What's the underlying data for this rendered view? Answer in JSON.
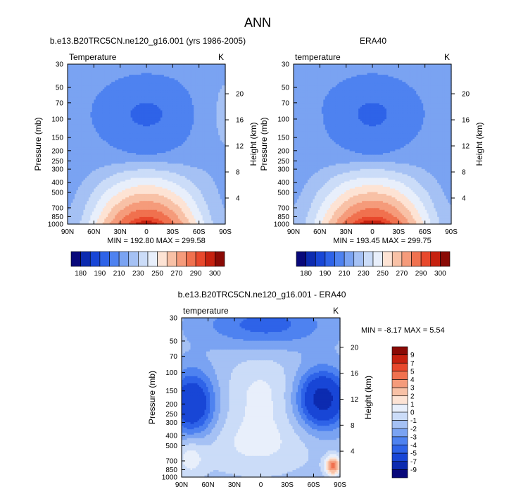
{
  "page_title": "ANN",
  "chart_data": [
    {
      "type": "heatmap",
      "title": "b.e13.B20TRC5CN.ne120_g16.001 (yrs 1986-2005)",
      "subtitle_left": "Temperature",
      "subtitle_right": "K",
      "xlabel": "",
      "ylabel": "Pressure (mb)",
      "ylabel_right": "Height (km)",
      "x_ticks": [
        "90N",
        "60N",
        "30N",
        "0",
        "30S",
        "60S",
        "90S"
      ],
      "x_tick_values": [
        90,
        60,
        30,
        0,
        -30,
        -60,
        -90
      ],
      "xlim": [
        90,
        -90
      ],
      "y_ticks": [
        "30",
        "50",
        "70",
        "100",
        "150",
        "200",
        "250",
        "300",
        "400",
        "500",
        "700",
        "850",
        "1000"
      ],
      "y_tick_values": [
        30,
        50,
        70,
        100,
        150,
        200,
        250,
        300,
        400,
        500,
        700,
        850,
        1000
      ],
      "ylim": [
        1000,
        30
      ],
      "y_scale": "log",
      "height_ticks": [
        "20",
        "16",
        "12",
        "8",
        "4"
      ],
      "height_tick_values": [
        20,
        16,
        12,
        8,
        4
      ],
      "min_label": "MIN = 192.80  MAX = 299.58",
      "min": 192.8,
      "max": 299.58,
      "colorbar_labels": [
        "180",
        "190",
        "210",
        "230",
        "250",
        "270",
        "290",
        "300"
      ],
      "levels": [
        180,
        185,
        190,
        200,
        210,
        220,
        230,
        240,
        250,
        260,
        270,
        280,
        290,
        295,
        300
      ],
      "colorbar_position": "bottom"
    },
    {
      "type": "heatmap",
      "title": "ERA40",
      "subtitle_left": "temperature",
      "subtitle_right": "K",
      "xlabel": "",
      "ylabel": "Pressure (mb)",
      "ylabel_right": "Height (km)",
      "x_ticks": [
        "90N",
        "60N",
        "30N",
        "0",
        "30S",
        "60S",
        "90S"
      ],
      "x_tick_values": [
        90,
        60,
        30,
        0,
        -30,
        -60,
        -90
      ],
      "xlim": [
        90,
        -90
      ],
      "y_ticks": [
        "30",
        "50",
        "70",
        "100",
        "150",
        "200",
        "250",
        "300",
        "400",
        "500",
        "700",
        "850",
        "1000"
      ],
      "y_tick_values": [
        30,
        50,
        70,
        100,
        150,
        200,
        250,
        300,
        400,
        500,
        700,
        850,
        1000
      ],
      "ylim": [
        1000,
        30
      ],
      "y_scale": "log",
      "height_ticks": [
        "20",
        "16",
        "12",
        "8",
        "4"
      ],
      "height_tick_values": [
        20,
        16,
        12,
        8,
        4
      ],
      "min_label": "MIN = 193.45  MAX = 299.75",
      "min": 193.45,
      "max": 299.75,
      "colorbar_labels": [
        "180",
        "190",
        "210",
        "230",
        "250",
        "270",
        "290",
        "300"
      ],
      "levels": [
        180,
        185,
        190,
        200,
        210,
        220,
        230,
        240,
        250,
        260,
        270,
        280,
        290,
        295,
        300
      ],
      "colorbar_position": "bottom"
    },
    {
      "type": "heatmap",
      "title": "b.e13.B20TRC5CN.ne120_g16.001 - ERA40",
      "subtitle_left": "temperature",
      "subtitle_right": "K",
      "xlabel": "",
      "ylabel": "Pressure (mb)",
      "ylabel_right": "Height (km)",
      "x_ticks": [
        "90N",
        "60N",
        "30N",
        "0",
        "30S",
        "60S",
        "90S"
      ],
      "x_tick_values": [
        90,
        60,
        30,
        0,
        -30,
        -60,
        -90
      ],
      "xlim": [
        90,
        -90
      ],
      "y_ticks": [
        "30",
        "50",
        "70",
        "100",
        "150",
        "200",
        "250",
        "300",
        "400",
        "500",
        "700",
        "850",
        "1000"
      ],
      "y_tick_values": [
        30,
        50,
        70,
        100,
        150,
        200,
        250,
        300,
        400,
        500,
        700,
        850,
        1000
      ],
      "ylim": [
        1000,
        30
      ],
      "y_scale": "log",
      "height_ticks": [
        "20",
        "16",
        "12",
        "8",
        "4"
      ],
      "height_tick_values": [
        20,
        16,
        12,
        8,
        4
      ],
      "min_label": "MIN = -8.17  MAX =  5.54",
      "min": -8.17,
      "max": 5.54,
      "colorbar_labels": [
        "9",
        "7",
        "5",
        "4",
        "3",
        "2",
        "1",
        "0",
        "-1",
        "-2",
        "-3",
        "-4",
        "-5",
        "-7",
        "-9"
      ],
      "levels": [
        -9,
        -7,
        -5,
        -4,
        -3,
        -2,
        -1,
        0,
        1,
        2,
        3,
        4,
        5,
        7,
        9
      ],
      "colorbar_position": "right"
    }
  ],
  "colors": {
    "temperature_fill": [
      "#08087a",
      "#0c2bb0",
      "#1846d6",
      "#2e63e8",
      "#4e82f0",
      "#7aa3f2",
      "#a5c1f4",
      "#cbdcf8",
      "#e8effb",
      "#fde3d4",
      "#f8c1a6",
      "#f59b7b",
      "#f0714f",
      "#e8482c",
      "#c6210f",
      "#8a0a05"
    ],
    "difference_fill": [
      "#08087a",
      "#0c2bb0",
      "#1846d6",
      "#2e63e8",
      "#4e82f0",
      "#7aa3f2",
      "#a5c1f4",
      "#cbdcf8",
      "#e8effb",
      "#fde3d4",
      "#f8c1a6",
      "#f59b7b",
      "#f0714f",
      "#e8482c",
      "#c6210f",
      "#8a0a05"
    ]
  }
}
